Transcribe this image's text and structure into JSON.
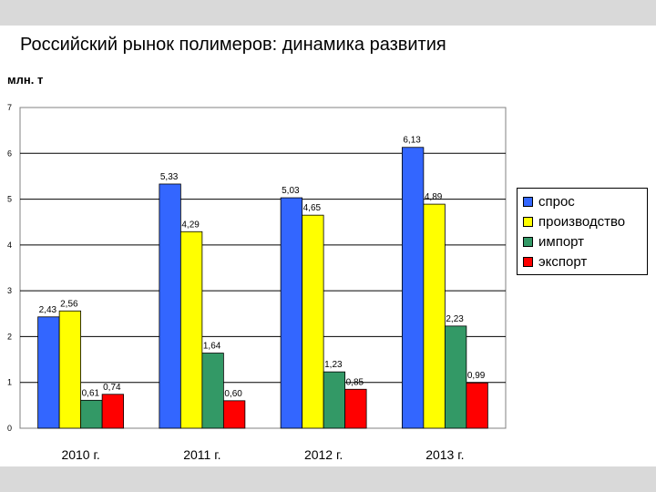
{
  "slide": {
    "title": "Российский рынок полимеров: динамика развития",
    "unit_label": "млн. т"
  },
  "chart_data": {
    "type": "bar",
    "categories": [
      "2010 г.",
      "2011 г.",
      "2012 г.",
      "2013 г."
    ],
    "series": [
      {
        "name": "спрос",
        "color": "#3366ff",
        "values": [
          2.43,
          5.33,
          5.03,
          6.13
        ],
        "labels": [
          "2,43",
          "5,33",
          "5,03",
          "6,13"
        ]
      },
      {
        "name": "производство",
        "color": "#ffff00",
        "values": [
          2.56,
          4.29,
          4.65,
          4.89
        ],
        "labels": [
          "2,56",
          "4,29",
          "4,65",
          "4,89"
        ]
      },
      {
        "name": "импорт",
        "color": "#339966",
        "values": [
          0.61,
          1.64,
          1.23,
          2.23
        ],
        "labels": [
          "0,61",
          "1,64",
          "1,23",
          "2,23"
        ]
      },
      {
        "name": "экспорт",
        "color": "#ff0000",
        "values": [
          0.74,
          0.6,
          0.85,
          0.99
        ],
        "labels": [
          "0,74",
          "0,60",
          "0,85",
          "0,99"
        ]
      }
    ],
    "ylim": [
      0,
      7
    ],
    "yticks": [
      "0",
      "1",
      "2",
      "3",
      "4",
      "5",
      "6",
      "7"
    ],
    "ylabel": "млн. т",
    "grid": true,
    "legend_position": "right"
  }
}
